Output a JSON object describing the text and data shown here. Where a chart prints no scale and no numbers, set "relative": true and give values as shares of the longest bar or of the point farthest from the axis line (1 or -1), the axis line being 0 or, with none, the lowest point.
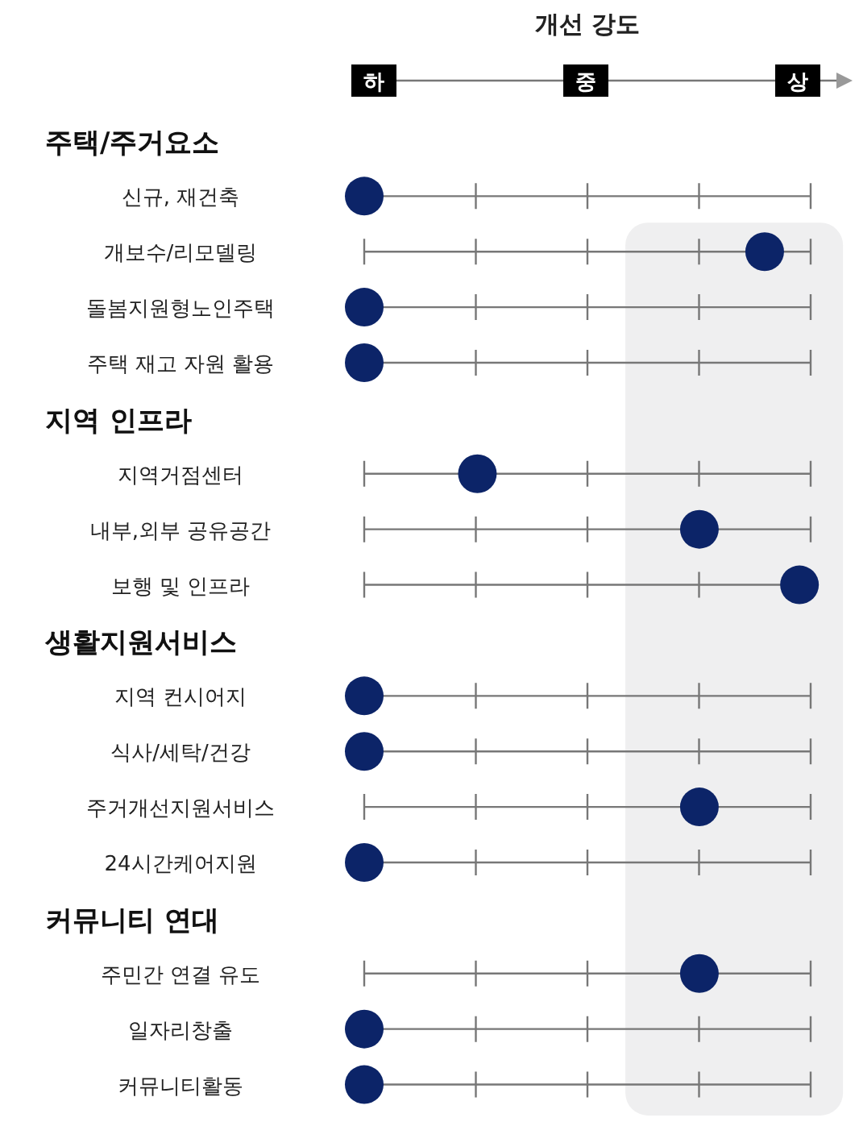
{
  "chart_data": {
    "type": "scatter",
    "orientation": "horizontal",
    "relative": true,
    "title": "개선 강도",
    "categories": [
      null,
      "신규, 재건축",
      "개보수/리모델링",
      "돌봄지원형노인주택",
      "주택 재고 자원 활용",
      null,
      "지역거점센터",
      "내부,외부 공유공간",
      "보행 및  인프라",
      null,
      "지역 컨시어지",
      "식사/세탁/건강",
      "주거개선지원서비스",
      "24시간케어지원",
      null,
      "주민간 연결 유도",
      "일자리창출",
      "커뮤니티활동"
    ],
    "series": [
      {
        "color": "#0c2468",
        "values": [
          null,
          0,
          0.92,
          0,
          0,
          null,
          0.26,
          0.77,
          1,
          null,
          0,
          0,
          0.77,
          0,
          null,
          0.77,
          0,
          0
        ]
      }
    ],
    "annotations": [
      "하",
      "중",
      "상",
      "주택/주거요소",
      "지역 인프라",
      "생활지원서비스",
      "커뮤니티 연대"
    ],
    "bands": [
      {
        "axis": "x",
        "from": 0.6,
        "to": 1.1,
        "color": "#efeff0"
      }
    ],
    "grid": "y",
    "marker": "circle"
  }
}
